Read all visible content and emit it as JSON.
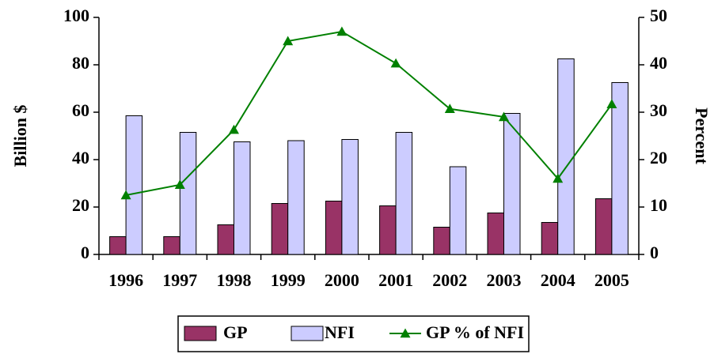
{
  "chart_data": {
    "type": "bar",
    "categories": [
      "1996",
      "1997",
      "1998",
      "1999",
      "2000",
      "2001",
      "2002",
      "2003",
      "2004",
      "2005"
    ],
    "series": [
      {
        "name": "GP",
        "color": "#993366",
        "values": [
          7.5,
          7.5,
          12.5,
          21.5,
          22.5,
          20.5,
          11.5,
          17.5,
          13.5,
          23.5
        ]
      },
      {
        "name": "NFI",
        "color": "#ccccff",
        "values": [
          58.5,
          51.5,
          47.5,
          48,
          48.5,
          51.5,
          37,
          59.5,
          82.5,
          72.5
        ]
      },
      {
        "name": "GP % of NFI",
        "color": "#008000",
        "type": "line",
        "axis": "y2",
        "values": [
          12.5,
          14.7,
          26.3,
          45,
          47,
          40.3,
          30.7,
          29,
          16,
          31.7
        ]
      }
    ],
    "ylabel": "Billion $",
    "y2label": "Percent",
    "ylim": [
      0,
      100
    ],
    "yticks": [
      0,
      20,
      40,
      60,
      80,
      100
    ],
    "y2lim": [
      0,
      50
    ],
    "y2ticks": [
      0,
      10,
      20,
      30,
      40,
      50
    ],
    "legend": "bottom"
  }
}
